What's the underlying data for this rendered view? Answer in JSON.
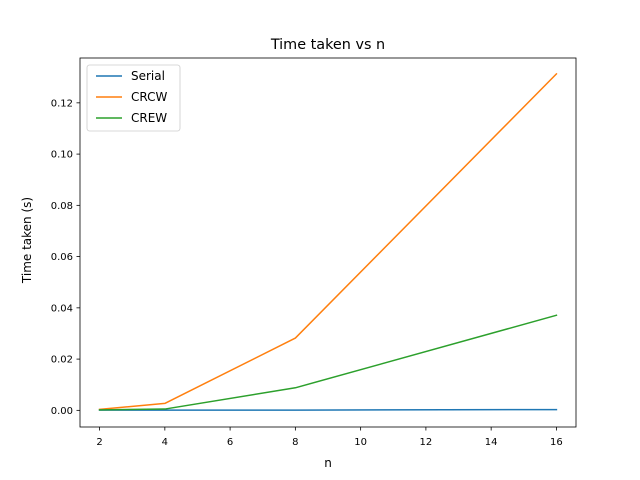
{
  "chart_data": {
    "type": "line",
    "title": "Time taken vs n",
    "xlabel": "n",
    "ylabel": "Time taken (s)",
    "x": [
      2,
      4,
      8,
      16
    ],
    "xlim": [
      1.4,
      16.6
    ],
    "ylim": [
      -0.0065,
      0.1375
    ],
    "xticks": [
      2,
      4,
      6,
      8,
      10,
      12,
      14,
      16
    ],
    "yticks": [
      0.0,
      0.02,
      0.04,
      0.06,
      0.08,
      0.1,
      0.12
    ],
    "ytick_labels": [
      "0.00",
      "0.02",
      "0.04",
      "0.06",
      "0.08",
      "0.10",
      "0.12"
    ],
    "grid": false,
    "legend_position": "top-left",
    "series": [
      {
        "name": "Serial",
        "color": "#1f77b4",
        "values": [
          0.0001,
          0.0001,
          0.0001,
          0.0003
        ]
      },
      {
        "name": "CRCW",
        "color": "#ff7f0e",
        "values": [
          0.0004,
          0.0027,
          0.0282,
          0.1313
        ]
      },
      {
        "name": "CREW",
        "color": "#2ca02c",
        "values": [
          0.0002,
          0.0005,
          0.0088,
          0.0371
        ]
      }
    ]
  }
}
